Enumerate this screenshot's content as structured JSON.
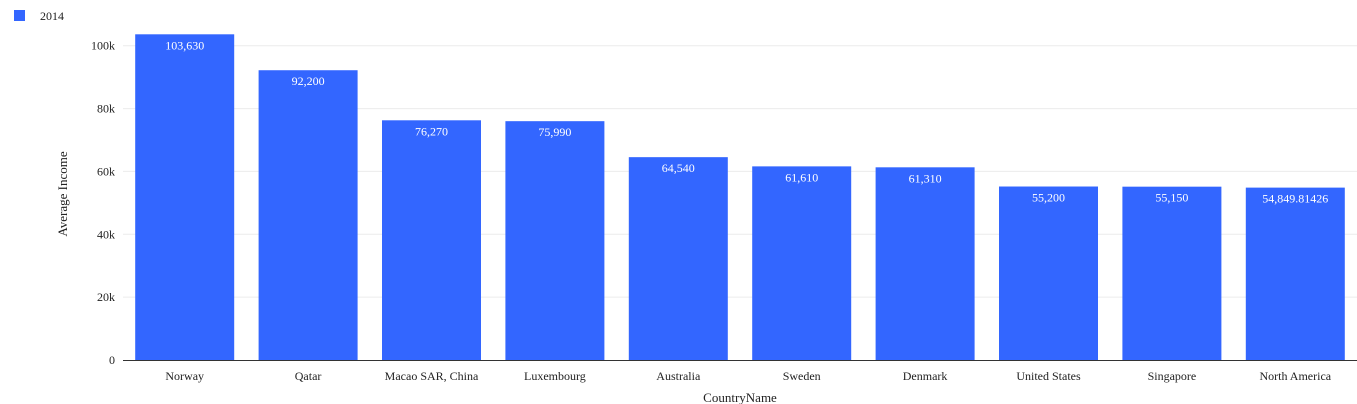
{
  "chart_data": {
    "type": "bar",
    "title": "",
    "xlabel": "CountryName",
    "ylabel": "Average Income",
    "ylim": [
      0,
      105000
    ],
    "yticks": [
      {
        "value": 0,
        "label": "0"
      },
      {
        "value": 20000,
        "label": "20k"
      },
      {
        "value": 40000,
        "label": "40k"
      },
      {
        "value": 60000,
        "label": "60k"
      },
      {
        "value": 80000,
        "label": "80k"
      },
      {
        "value": 100000,
        "label": "100k"
      }
    ],
    "grid": true,
    "legend_position": "top-left",
    "categories": [
      "Norway",
      "Qatar",
      "Macao SAR, China",
      "Luxembourg",
      "Australia",
      "Sweden",
      "Denmark",
      "United States",
      "Singapore",
      "North America"
    ],
    "series": [
      {
        "name": "2014",
        "color": "#3366ff",
        "values": [
          103630,
          92200,
          76270,
          75990,
          64540,
          61610,
          61310,
          55200,
          55150,
          54849.81426
        ],
        "value_labels": [
          "103,630",
          "92,200",
          "76,270",
          "75,990",
          "64,540",
          "61,610",
          "61,310",
          "55,200",
          "55,150",
          "54,849.81426"
        ]
      }
    ]
  }
}
